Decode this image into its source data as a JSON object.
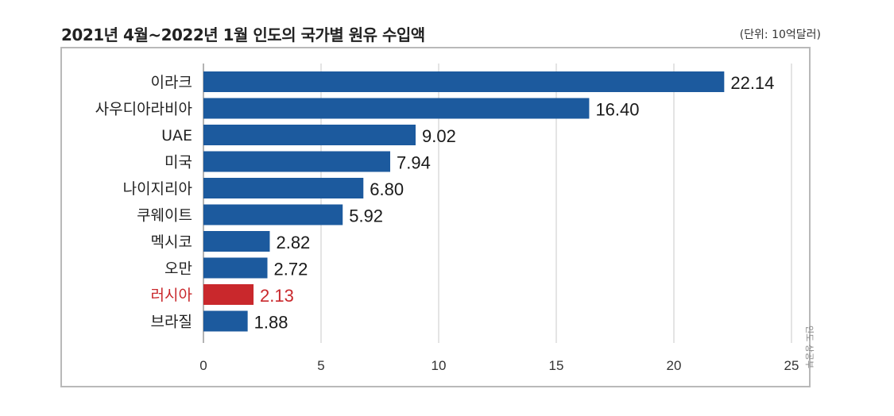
{
  "chart_data": {
    "type": "bar",
    "orientation": "horizontal",
    "title": "2021년 4월~2022년 1월 인도의 국가별 원유 수입액",
    "unit_label": "(단위: 10억달러)",
    "categories": [
      "이라크",
      "사우디아라비아",
      "UAE",
      "미국",
      "나이지리아",
      "쿠웨이트",
      "멕시코",
      "오만",
      "러시아",
      "브라질"
    ],
    "values": [
      22.14,
      16.4,
      9.02,
      7.94,
      6.8,
      5.92,
      2.82,
      2.72,
      2.13,
      1.88
    ],
    "value_labels": [
      "22.14",
      "16.40",
      "9.02",
      "7.94",
      "6.80",
      "5.92",
      "2.82",
      "2.72",
      "2.13",
      "1.88"
    ],
    "highlight_index": 8,
    "x_ticks": [
      0,
      5,
      10,
      15,
      20,
      25
    ],
    "xlim": [
      0,
      25
    ],
    "grid": "vertical",
    "source": "인도 상공부",
    "colors": {
      "bar": "#1c5a9e",
      "highlight_bar": "#c9282c",
      "highlight_text": "#c9282c",
      "grid": "#c8c8c8"
    }
  }
}
